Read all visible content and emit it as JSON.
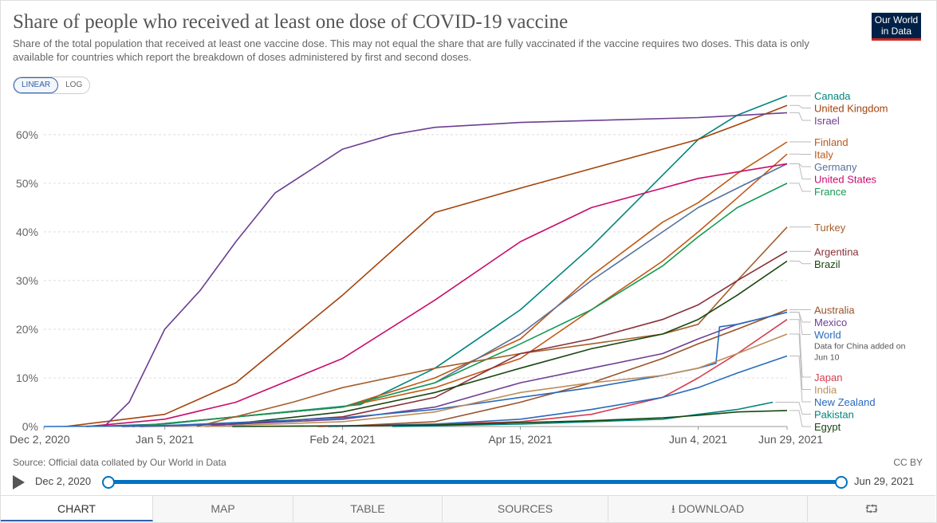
{
  "header": {
    "title": "Share of people who received at least one dose of COVID-19 vaccine",
    "subtitle": "Share of the total population that received at least one vaccine dose. This may not equal the share that are fully vaccinated if the vaccine requires two doses. This data is only available for countries which report the breakdown of doses administered by first and second doses.",
    "logo_line1": "Our World",
    "logo_line2": "in Data"
  },
  "scale_toggle": {
    "linear_label": "LINEAR",
    "log_label": "LOG",
    "selected": "LINEAR"
  },
  "chart_data": {
    "type": "line",
    "x_unit": "date",
    "xlim": [
      "2020-12-02",
      "2021-06-29"
    ],
    "ylim": [
      0,
      68
    ],
    "y_ticks": [
      0,
      10,
      20,
      30,
      40,
      50,
      60
    ],
    "y_tick_labels": [
      "0%",
      "10%",
      "20%",
      "30%",
      "40%",
      "50%",
      "60%"
    ],
    "x_ticks": [
      "2020-12-02",
      "2021-01-05",
      "2021-02-24",
      "2021-04-15",
      "2021-06-04",
      "2021-06-29"
    ],
    "x_tick_labels": [
      "Dec 2, 2020",
      "Jan 5, 2021",
      "Feb 24, 2021",
      "Apr 15, 2021",
      "Jun 4, 2021",
      "Jun 29, 2021"
    ],
    "grid": "horizontal dashed",
    "legend": "right, labels at line ends",
    "series": [
      {
        "name": "Canada",
        "color": "#00847e",
        "x": [
          "2020-12-14",
          "2021-01-05",
          "2021-02-01",
          "2021-03-01",
          "2021-03-22",
          "2021-04-15",
          "2021-05-05",
          "2021-05-20",
          "2021-06-04",
          "2021-06-15",
          "2021-06-29"
        ],
        "y": [
          0,
          0.5,
          2.5,
          4.5,
          12,
          24,
          37,
          48,
          59,
          64,
          68
        ]
      },
      {
        "name": "United Kingdom",
        "color": "#a2430b",
        "x": [
          "2020-12-08",
          "2021-01-05",
          "2021-01-25",
          "2021-02-24",
          "2021-03-22",
          "2021-04-15",
          "2021-05-05",
          "2021-05-25",
          "2021-06-04",
          "2021-06-15",
          "2021-06-29"
        ],
        "y": [
          0,
          2.5,
          9,
          27,
          44,
          49,
          53,
          57,
          59,
          62,
          66
        ]
      },
      {
        "name": "Israel",
        "color": "#6d3e91",
        "x": [
          "2020-12-19",
          "2020-12-26",
          "2021-01-05",
          "2021-01-15",
          "2021-01-25",
          "2021-02-05",
          "2021-02-24",
          "2021-03-10",
          "2021-03-22",
          "2021-04-15",
          "2021-06-04",
          "2021-06-29"
        ],
        "y": [
          0,
          5,
          20,
          28,
          38,
          48,
          57,
          60,
          61.5,
          62.5,
          63.5,
          64.5
        ]
      },
      {
        "name": "Finland",
        "color": "#be5915",
        "x": [
          "2020-12-27",
          "2021-01-25",
          "2021-02-24",
          "2021-03-22",
          "2021-04-15",
          "2021-05-05",
          "2021-05-25",
          "2021-06-04",
          "2021-06-15",
          "2021-06-29"
        ],
        "y": [
          0,
          2,
          4,
          10,
          18,
          31,
          42,
          46,
          52,
          58.5
        ]
      },
      {
        "name": "Italy",
        "color": "#c05917",
        "x": [
          "2020-12-27",
          "2021-01-25",
          "2021-02-24",
          "2021-03-22",
          "2021-04-15",
          "2021-05-05",
          "2021-05-25",
          "2021-06-04",
          "2021-06-15",
          "2021-06-29"
        ],
        "y": [
          0,
          2,
          4,
          8,
          14,
          24,
          34,
          40,
          47,
          56
        ]
      },
      {
        "name": "Germany",
        "color": "#58719d",
        "x": [
          "2020-12-27",
          "2021-01-25",
          "2021-02-24",
          "2021-03-22",
          "2021-04-15",
          "2021-05-05",
          "2021-05-25",
          "2021-06-04",
          "2021-06-15",
          "2021-06-29"
        ],
        "y": [
          0,
          2,
          4,
          9,
          19,
          30,
          40,
          45,
          49,
          54
        ]
      },
      {
        "name": "United States",
        "color": "#c90c6e",
        "x": [
          "2020-12-14",
          "2021-01-05",
          "2021-01-25",
          "2021-02-24",
          "2021-03-22",
          "2021-04-15",
          "2021-05-05",
          "2021-05-25",
          "2021-06-04",
          "2021-06-29"
        ],
        "y": [
          0,
          1.5,
          5,
          14,
          26,
          38,
          45,
          49,
          51,
          54
        ]
      },
      {
        "name": "France",
        "color": "#139a52",
        "x": [
          "2020-12-27",
          "2021-01-25",
          "2021-02-24",
          "2021-03-22",
          "2021-04-15",
          "2021-05-05",
          "2021-05-25",
          "2021-06-04",
          "2021-06-15",
          "2021-06-29"
        ],
        "y": [
          0,
          2,
          4,
          9,
          17,
          24,
          33,
          39,
          45,
          50
        ]
      },
      {
        "name": "Turkey",
        "color": "#a55e2b",
        "x": [
          "2021-01-14",
          "2021-02-10",
          "2021-02-24",
          "2021-03-22",
          "2021-04-15",
          "2021-05-05",
          "2021-05-25",
          "2021-06-04",
          "2021-06-15",
          "2021-06-29"
        ],
        "y": [
          0,
          5,
          8,
          12,
          15,
          17,
          19,
          21,
          30,
          41
        ]
      },
      {
        "name": "Argentina",
        "color": "#883039",
        "x": [
          "2020-12-29",
          "2021-01-25",
          "2021-02-24",
          "2021-03-22",
          "2021-04-15",
          "2021-05-05",
          "2021-05-25",
          "2021-06-04",
          "2021-06-15",
          "2021-06-29"
        ],
        "y": [
          0,
          0.5,
          2,
          6,
          15,
          18,
          22,
          25,
          30,
          36
        ]
      },
      {
        "name": "Brazil",
        "color": "#18470f",
        "x": [
          "2021-01-17",
          "2021-02-24",
          "2021-03-22",
          "2021-04-15",
          "2021-05-05",
          "2021-05-25",
          "2021-06-04",
          "2021-06-15",
          "2021-06-29"
        ],
        "y": [
          0,
          3,
          7,
          12,
          16,
          19,
          22,
          27,
          34
        ]
      },
      {
        "name": "Australia",
        "color": "#9a5129",
        "x": [
          "2021-02-22",
          "2021-03-22",
          "2021-04-15",
          "2021-05-05",
          "2021-05-25",
          "2021-06-04",
          "2021-06-15",
          "2021-06-29"
        ],
        "y": [
          0,
          1,
          5,
          9,
          14,
          17,
          20,
          24
        ]
      },
      {
        "name": "Mexico",
        "color": "#6d3e91",
        "x": [
          "2020-12-24",
          "2021-01-25",
          "2021-02-24",
          "2021-03-22",
          "2021-04-15",
          "2021-05-05",
          "2021-05-25",
          "2021-06-04",
          "2021-06-15",
          "2021-06-29"
        ],
        "y": [
          0,
          0.5,
          1.5,
          4,
          9,
          12,
          15,
          18,
          21,
          23.5
        ]
      },
      {
        "name": "World",
        "color": "#286bbb",
        "x": [
          "2020-12-02",
          "2021-01-05",
          "2021-01-25",
          "2021-02-24",
          "2021-03-22",
          "2021-04-15",
          "2021-05-05",
          "2021-05-25",
          "2021-06-04",
          "2021-06-09",
          "2021-06-10",
          "2021-06-15",
          "2021-06-29"
        ],
        "y": [
          0,
          0.2,
          0.8,
          1.8,
          3.5,
          6,
          8,
          10.5,
          12,
          13,
          20.5,
          21,
          23.5
        ]
      },
      {
        "name": "Japan",
        "color": "#d73c50",
        "x": [
          "2021-02-17",
          "2021-03-22",
          "2021-04-15",
          "2021-05-05",
          "2021-05-25",
          "2021-06-04",
          "2021-06-15",
          "2021-06-29"
        ],
        "y": [
          0,
          0.5,
          1,
          2.5,
          6,
          10,
          15,
          22
        ]
      },
      {
        "name": "India",
        "color": "#bc8e5a",
        "x": [
          "2021-01-16",
          "2021-02-24",
          "2021-03-22",
          "2021-04-15",
          "2021-05-05",
          "2021-05-25",
          "2021-06-04",
          "2021-06-15",
          "2021-06-29"
        ],
        "y": [
          0,
          1,
          3,
          7,
          9,
          10.5,
          12,
          15,
          19
        ]
      },
      {
        "name": "New Zealand",
        "color": "#286bbb",
        "x": [
          "2021-02-20",
          "2021-03-22",
          "2021-04-15",
          "2021-05-05",
          "2021-05-25",
          "2021-06-04",
          "2021-06-15",
          "2021-06-29"
        ],
        "y": [
          0,
          0.5,
          1.5,
          3.5,
          6,
          8,
          11,
          14.5
        ]
      },
      {
        "name": "Pakistan",
        "color": "#00847e",
        "x": [
          "2021-03-10",
          "2021-04-15",
          "2021-05-05",
          "2021-05-25",
          "2021-06-04",
          "2021-06-15",
          "2021-06-25"
        ],
        "y": [
          0,
          0.5,
          1,
          1.5,
          2.5,
          3.5,
          5
        ]
      },
      {
        "name": "Egypt",
        "color": "#18470f",
        "x": [
          "2021-01-24",
          "2021-03-22",
          "2021-04-15",
          "2021-05-05",
          "2021-05-25",
          "2021-06-04",
          "2021-06-15",
          "2021-06-29"
        ],
        "y": [
          0,
          0.3,
          0.8,
          1.2,
          1.8,
          2.3,
          3,
          3.3
        ]
      }
    ],
    "annotation": {
      "text": "Data for China added on Jun 10",
      "series": "World"
    }
  },
  "footer": {
    "source": "Source: Official data collated by Our World in Data",
    "license": "CC BY"
  },
  "timeline": {
    "start_label": "Dec 2, 2020",
    "end_label": "Jun 29, 2021",
    "start_fraction": 0,
    "end_fraction": 1
  },
  "tabs": [
    {
      "label": "CHART",
      "active": true
    },
    {
      "label": "MAP",
      "active": false
    },
    {
      "label": "TABLE",
      "active": false
    },
    {
      "label": "SOURCES",
      "active": false
    },
    {
      "label": "DOWNLOAD",
      "active": false
    },
    {
      "label": "",
      "active": false
    }
  ],
  "icons": {
    "play": "play-icon",
    "download": "download-icon",
    "share": "share-icon"
  }
}
